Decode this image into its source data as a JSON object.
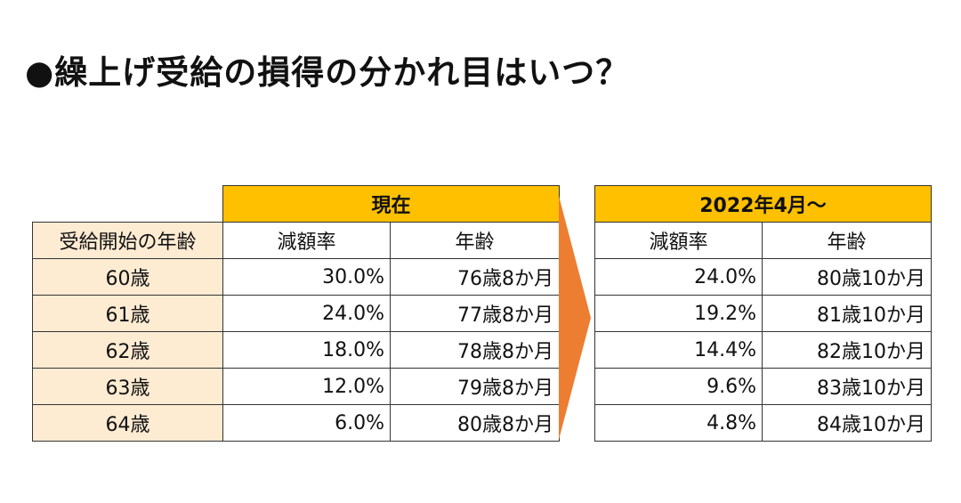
{
  "title": "●繰上げ受給の損得の分かれ目はいつ？",
  "colors": {
    "header_fill": "#ffc000",
    "age_fill": "#fdebd2",
    "arrow": "#ed7d31"
  },
  "current_table": {
    "group_label": "現在",
    "age_header": "受給開始の年齢",
    "col_rate": "減額率",
    "col_age": "年齢",
    "rows": [
      {
        "start_age": "60歳",
        "rate": "30.0%",
        "age": "76歳8か月"
      },
      {
        "start_age": "61歳",
        "rate": "24.0%",
        "age": "77歳8か月"
      },
      {
        "start_age": "62歳",
        "rate": "18.0%",
        "age": "78歳8か月"
      },
      {
        "start_age": "63歳",
        "rate": "12.0%",
        "age": "79歳8か月"
      },
      {
        "start_age": "64歳",
        "rate": "6.0%",
        "age": "80歳8か月"
      }
    ]
  },
  "future_table": {
    "group_label": "2022年4月～",
    "col_rate": "減額率",
    "col_age": "年齢",
    "rows": [
      {
        "rate": "24.0%",
        "age": "80歳10か月"
      },
      {
        "rate": "19.2%",
        "age": "81歳10か月"
      },
      {
        "rate": "14.4%",
        "age": "82歳10か月"
      },
      {
        "rate": "9.6%",
        "age": "83歳10か月"
      },
      {
        "rate": "4.8%",
        "age": "84歳10か月"
      }
    ]
  }
}
